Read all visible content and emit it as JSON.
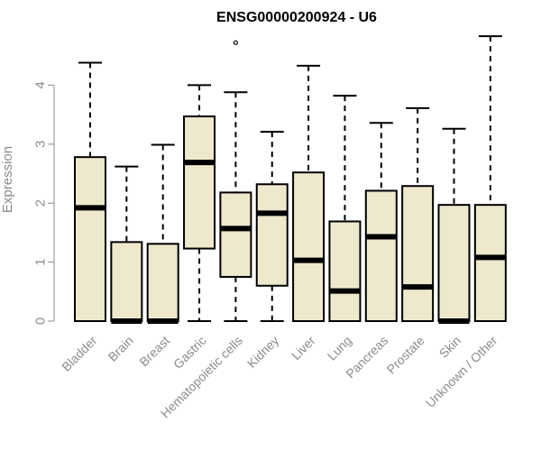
{
  "chart_data": {
    "type": "box",
    "title": "ENSG00000200924 - U6",
    "xlabel": "",
    "ylabel": "Expression",
    "ylim": [
      0,
      4.8
    ],
    "yticks": [
      0,
      1,
      2,
      3,
      4
    ],
    "grid": false,
    "box_fill": "#EEE8CD",
    "categories": [
      "Bladder",
      "Brain",
      "Breast",
      "Gastric",
      "Hematopoietic cells",
      "Kidney",
      "Liver",
      "Lung",
      "Pancreas",
      "Prostate",
      "Skin",
      "Unknown / Other"
    ],
    "boxes": [
      {
        "min": 0,
        "q1": 0,
        "median": 1.92,
        "q3": 2.78,
        "max": 4.38,
        "outliers": []
      },
      {
        "min": 0,
        "q1": 0,
        "median": 0.0,
        "q3": 1.34,
        "max": 2.62,
        "outliers": []
      },
      {
        "min": 0,
        "q1": 0,
        "median": 0.0,
        "q3": 1.31,
        "max": 2.99,
        "outliers": []
      },
      {
        "min": 0,
        "q1": 1.23,
        "median": 2.69,
        "q3": 3.47,
        "max": 4.0,
        "outliers": []
      },
      {
        "min": 0,
        "q1": 0.75,
        "median": 1.57,
        "q3": 2.18,
        "max": 3.88,
        "outliers": [
          4.72
        ]
      },
      {
        "min": 0,
        "q1": 0.6,
        "median": 1.83,
        "q3": 2.32,
        "max": 3.21,
        "outliers": []
      },
      {
        "min": 0,
        "q1": 0,
        "median": 1.03,
        "q3": 2.52,
        "max": 4.33,
        "outliers": []
      },
      {
        "min": 0,
        "q1": 0,
        "median": 0.51,
        "q3": 1.69,
        "max": 3.82,
        "outliers": []
      },
      {
        "min": 0,
        "q1": 0,
        "median": 1.43,
        "q3": 2.21,
        "max": 3.36,
        "outliers": []
      },
      {
        "min": 0,
        "q1": 0,
        "median": 0.58,
        "q3": 2.29,
        "max": 3.61,
        "outliers": []
      },
      {
        "min": 0,
        "q1": 0,
        "median": 0.0,
        "q3": 1.97,
        "max": 3.26,
        "outliers": []
      },
      {
        "min": 0,
        "q1": 0,
        "median": 1.08,
        "q3": 1.97,
        "max": 4.83,
        "outliers": []
      }
    ]
  }
}
